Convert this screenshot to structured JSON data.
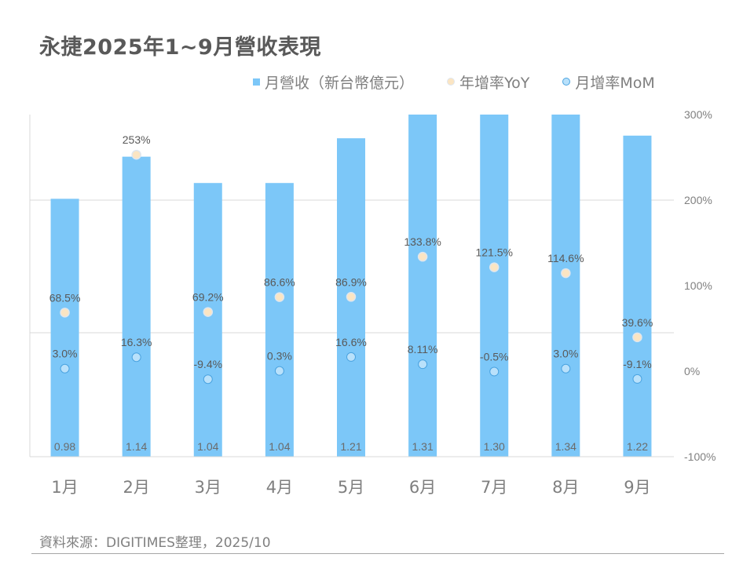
{
  "title": "永捷2025年1~9月營收表現",
  "source": "資料來源：DIGITIMES整理，2025/10",
  "colors": {
    "bar": "#7cc7f8",
    "yoy_fill": "#fbe5c3",
    "yoy_stroke": "#dfe6ee",
    "mom_fill": "#b9e1fb",
    "mom_stroke": "#4aa3e0",
    "grid": "#d9d9d9",
    "text": "#595959",
    "axis_text": "#808080"
  },
  "chart_data": {
    "type": "bar",
    "title": "永捷2025年1~9月營收表現",
    "categories": [
      "1月",
      "2月",
      "3月",
      "4月",
      "5月",
      "6月",
      "7月",
      "8月",
      "9月"
    ],
    "legend": [
      "月營收（新台幣億元）",
      "年增率YoY",
      "月增率MoM"
    ],
    "legend_position": "top-right",
    "grid": true,
    "series": [
      {
        "name": "月營收（新台幣億元）",
        "type": "bar",
        "axis": "left",
        "values": [
          0.98,
          1.14,
          1.04,
          1.04,
          1.21,
          1.31,
          1.3,
          1.34,
          1.22
        ],
        "labels": [
          "0.98",
          "1.14",
          "1.04",
          "1.04",
          "1.21",
          "1.31",
          "1.30",
          "1.34",
          "1.22"
        ]
      },
      {
        "name": "年增率YoY",
        "type": "scatter",
        "axis": "right",
        "values": [
          68.5,
          253,
          69.2,
          86.6,
          86.9,
          133.8,
          121.5,
          114.6,
          39.6
        ],
        "labels": [
          "68.5%",
          "253%",
          "69.2%",
          "86.6%",
          "86.9%",
          "133.8%",
          "121.5%",
          "114.6%",
          "39.6%"
        ]
      },
      {
        "name": "月增率MoM",
        "type": "scatter",
        "axis": "right",
        "values": [
          3.0,
          16.3,
          -9.4,
          0.3,
          16.6,
          8.11,
          -0.5,
          3.0,
          -9.1
        ],
        "labels": [
          "3.0%",
          "16.3%",
          "-9.4%",
          "0.3%",
          "16.6%",
          "8.11%",
          "-0.5%",
          "3.0%",
          "-9.1%"
        ]
      }
    ],
    "y_left": {
      "range": [
        0,
        1.3
      ],
      "ticks_hidden": true
    },
    "y_right": {
      "range": [
        -100,
        300
      ],
      "ticks": [
        "300%",
        "200%",
        "100%",
        "0%",
        "-100%"
      ],
      "tick_values": [
        300,
        200,
        100,
        0,
        -100
      ]
    }
  }
}
